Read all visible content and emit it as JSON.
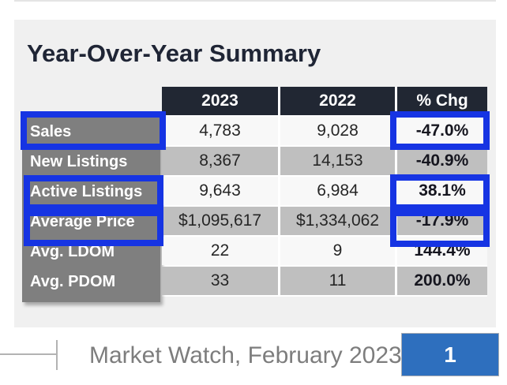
{
  "title": "Year-Over-Year Summary",
  "table": {
    "columns": [
      "2023",
      "2022",
      "% Chg"
    ],
    "rows": [
      {
        "label": "Sales",
        "y2023": "4,783",
        "y2022": "9,028",
        "chg": "-47.0%"
      },
      {
        "label": "New Listings",
        "y2023": "8,367",
        "y2022": "14,153",
        "chg": "-40.9%"
      },
      {
        "label": "Active Listings",
        "y2023": "9,643",
        "y2022": "6,984",
        "chg": "38.1%"
      },
      {
        "label": "Average Price",
        "y2023": "$1,095,617",
        "y2022": "$1,334,062",
        "chg": "-17.9%"
      },
      {
        "label": "Avg. LDOM",
        "y2023": "22",
        "y2022": "9",
        "chg": "144.4%"
      },
      {
        "label": "Avg. PDOM",
        "y2023": "33",
        "y2022": "11",
        "chg": "200.0%"
      }
    ]
  },
  "footer": {
    "caption": "Market Watch, February 2023",
    "page_number": "1"
  },
  "colors": {
    "annotation-blue": "#1634e3",
    "badge-blue": "#2e6fbe",
    "header-dark": "#212733",
    "label-gray": "#7f7f7f",
    "row-light": "#f8f8f8",
    "row-gray": "#bfbfbf",
    "panel-bg": "#f0f0f0"
  }
}
